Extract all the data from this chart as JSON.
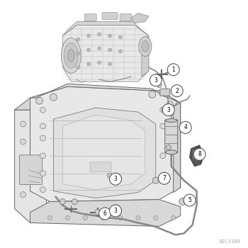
{
  "background_color": "#ffffff",
  "figure_size": [
    3.5,
    3.5
  ],
  "dpi": 100,
  "line_color": "#777777",
  "callout_circle_color": "#ffffff",
  "callout_text_color": "#000000",
  "watermark": "B2C3188",
  "watermark_fontsize": 5,
  "watermark_color": "#aaaaaa",
  "engine_outline_color": "#888888",
  "chassis_fill": "#eeeeee",
  "chassis_edge": "#666666",
  "detail_color": "#999999"
}
